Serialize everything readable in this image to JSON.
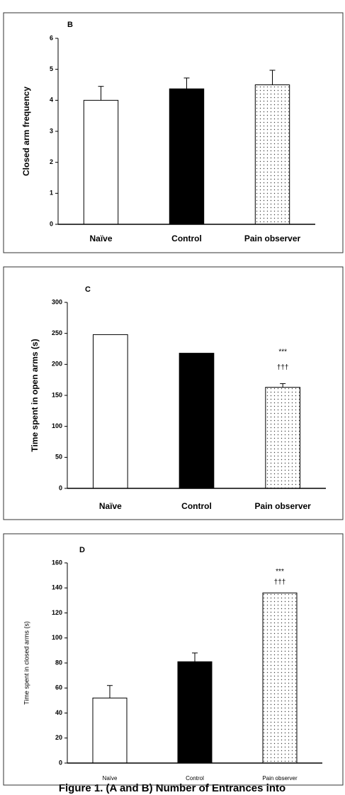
{
  "chart_data": [
    {
      "type": "bar",
      "title": "B",
      "y_label": "Closed arm frequency",
      "categories": [
        "Naïve",
        "Control",
        "Pain observer"
      ],
      "values": [
        4.0,
        4.37,
        4.5
      ],
      "errors": [
        0.45,
        0.35,
        0.47
      ],
      "bar_styles": [
        "outline",
        "solid",
        "dotted"
      ],
      "ylim": [
        0,
        6
      ],
      "yticks": [
        0,
        1,
        2,
        3,
        4,
        5,
        6
      ]
    },
    {
      "type": "bar",
      "title": "C",
      "y_label": "Time spent in open arms (s)",
      "categories": [
        "Naïve",
        "Control",
        "Pain observer"
      ],
      "values": [
        248,
        218,
        163
      ],
      "errors": [
        null,
        null,
        6
      ],
      "bar_styles": [
        "outline",
        "solid",
        "dotted"
      ],
      "annotations": [
        "***",
        "†††"
      ],
      "ylim": [
        0,
        300
      ],
      "yticks": [
        0,
        50,
        100,
        150,
        200,
        250,
        300
      ]
    },
    {
      "type": "bar",
      "title": "D",
      "y_label": "Time spent in closed arms (s)",
      "categories": [
        "Naïve",
        "Control",
        "Pain observer"
      ],
      "values": [
        52,
        81,
        136
      ],
      "errors": [
        10,
        7,
        null
      ],
      "bar_styles": [
        "outline",
        "solid",
        "dotted"
      ],
      "annotations": [
        "***",
        "†††"
      ],
      "ylim": [
        0,
        160
      ],
      "yticks": [
        0,
        20,
        40,
        60,
        80,
        100,
        120,
        140,
        160
      ]
    }
  ],
  "caption": "Figure 1. (A and B) Number of Entrances into"
}
